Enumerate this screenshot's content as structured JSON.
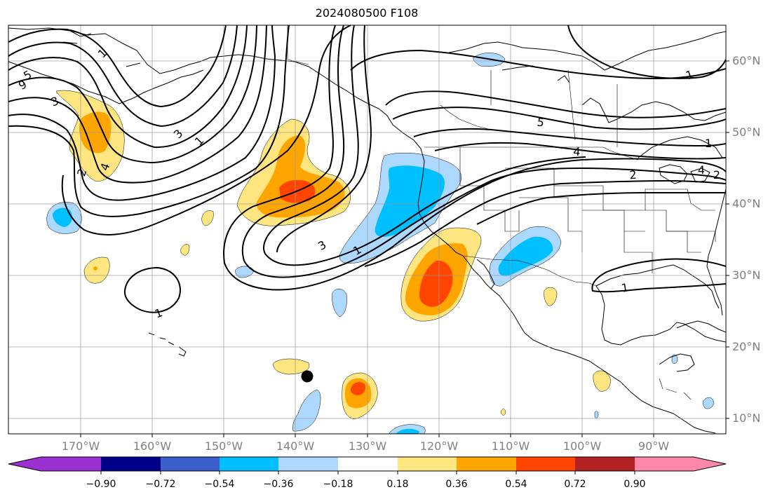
{
  "title": "2024080500 F108",
  "map": {
    "projection": "plate-carree",
    "lon_range": [
      -180,
      -80
    ],
    "lat_range": [
      8,
      65
    ],
    "gridlines": true,
    "grid_color": "#999999",
    "lat_labels": [
      "60°N",
      "50°N",
      "40°N",
      "30°N",
      "20°N",
      "10°N"
    ],
    "lon_labels": [
      "170°W",
      "160°W",
      "150°W",
      "140°W",
      "130°W",
      "120°W",
      "110°W",
      "100°W",
      "90°W"
    ],
    "contour_labels": [
      "1",
      "2",
      "3",
      "4",
      "5",
      "9",
      "1",
      "3",
      "1",
      "1",
      "2",
      "4",
      "5",
      "4",
      "2",
      "1",
      "1",
      "3",
      "1"
    ],
    "marker": "storm-position-dot"
  },
  "colorbar": {
    "orientation": "horizontal",
    "extend": "both",
    "colors": [
      "#9b30d0",
      "#00008b",
      "#3a5fcd",
      "#00bfff",
      "#add8ff",
      "#ffffff",
      "#ffe680",
      "#ffa500",
      "#ff4500",
      "#b22222",
      "#ff88aa"
    ],
    "tick_labels": [
      "−0.90",
      "−0.72",
      "−0.54",
      "−0.36",
      "−0.18",
      "0.18",
      "0.36",
      "0.54",
      "0.72",
      "0.90"
    ]
  }
}
